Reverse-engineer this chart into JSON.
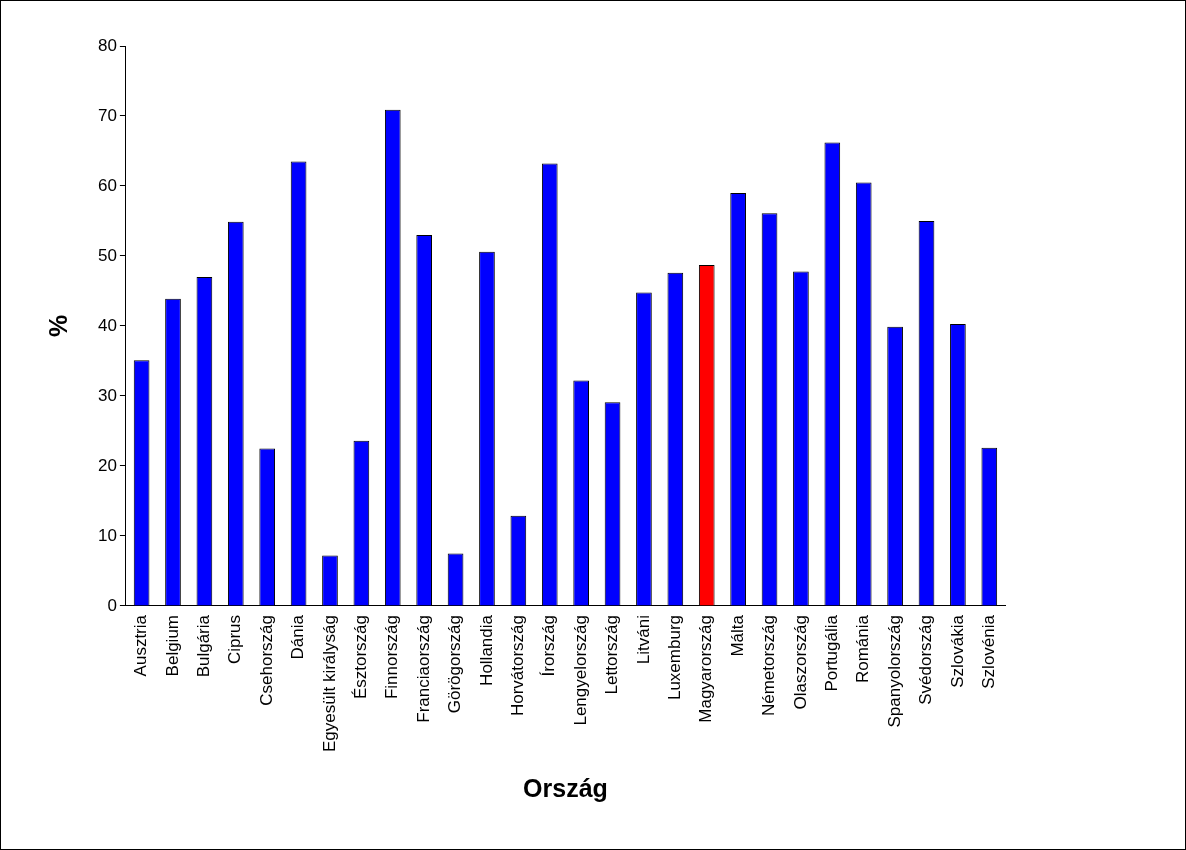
{
  "chart_data": {
    "type": "bar",
    "xlabel": "Ország",
    "ylabel": "%",
    "categories": [
      "Ausztria",
      "Belgium",
      "Bulgária",
      "Ciprus",
      "Csehország",
      "Dánia",
      "Egyesült királyság",
      "Észtország",
      "Finnország",
      "Franciaország",
      "Görögország",
      "Hollandia",
      "Horvátország",
      "Írország",
      "Lengyelország",
      "Lettország",
      "Litváni",
      "Luxemburg",
      "Magyarország",
      "Málta",
      "Németország",
      "Olaszország",
      "Portugália",
      "Románia",
      "Spanyolország",
      "Svédország",
      "Szlovákia",
      "Szlovénia"
    ],
    "values": [
      35.1,
      43.9,
      47.0,
      54.9,
      22.5,
      63.5,
      7.2,
      23.6,
      70.9,
      53.0,
      7.5,
      50.6,
      12.9,
      63.2,
      32.2,
      29.1,
      44.8,
      47.6,
      48.7,
      59.0,
      56.1,
      47.8,
      66.2,
      60.5,
      39.9,
      55.0,
      40.3,
      22.6
    ],
    "colors": [
      "#0000ff",
      "#0000ff",
      "#0000ff",
      "#0000ff",
      "#0000ff",
      "#0000ff",
      "#0000ff",
      "#0000ff",
      "#0000ff",
      "#0000ff",
      "#0000ff",
      "#0000ff",
      "#0000ff",
      "#0000ff",
      "#0000ff",
      "#0000ff",
      "#0000ff",
      "#0000ff",
      "#ff0000",
      "#0000ff",
      "#0000ff",
      "#0000ff",
      "#0000ff",
      "#0000ff",
      "#0000ff",
      "#0000ff",
      "#0000ff",
      "#0000ff"
    ],
    "ylim": [
      0,
      80
    ],
    "yticks": [
      0,
      10,
      20,
      30,
      40,
      50,
      60,
      70,
      80
    ],
    "grid": false,
    "legend": false
  }
}
